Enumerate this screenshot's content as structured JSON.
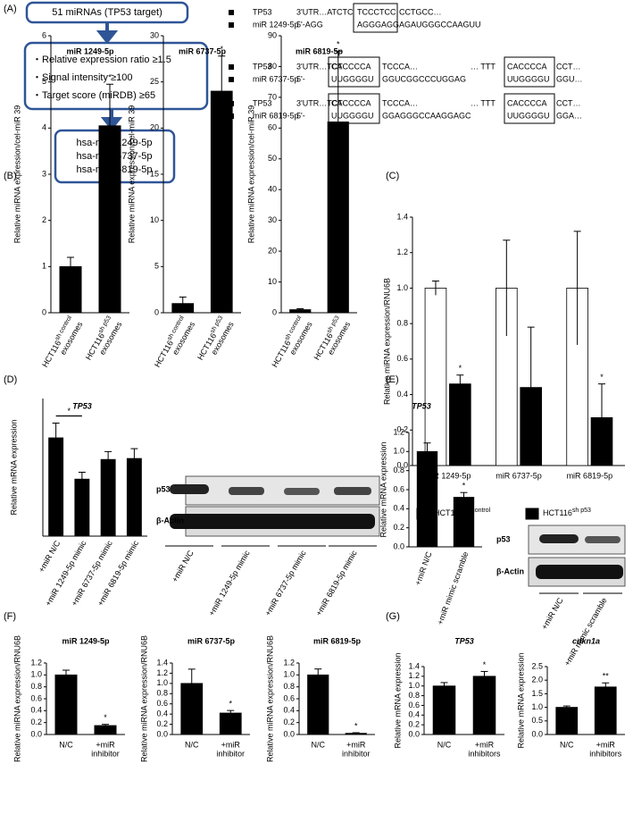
{
  "panel_labels": [
    "(A)",
    "(B)",
    "(C)",
    "(D)",
    "(E)",
    "(F)",
    "(G)"
  ],
  "flowchart": {
    "source": "51 miRNAs (TP53 target)",
    "criteria": [
      "Relative expression ratio ≥1.5",
      "Signal intensity ≥100",
      "Target score (miRDB) ≥65"
    ],
    "result": [
      "hsa-miR-1249-5p",
      "hsa-miR-6737-5p",
      "hsa-miR-6819-5p"
    ]
  },
  "alignments": [
    {
      "rows": [
        {
          "label": "TP53",
          "segments": [
            "3'UTR…ATCTC",
            "TCCCTCC",
            "CCTGCC…"
          ]
        },
        {
          "label": "miR 1249-5p",
          "segments": [
            "5'-AGG",
            "AGGGAGG",
            "AGAUGGGCCAAGUU"
          ]
        }
      ]
    },
    {
      "rows": [
        {
          "label": "TP53",
          "segments": [
            "3'UTR…TCT",
            "CACCCCA",
            "TCCCA…",
            "… TTT",
            "CACCCCA",
            "CCT…"
          ]
        },
        {
          "label": "miR 6737-5p",
          "segments": [
            "5'-",
            "UUGGGGU",
            "GGUCGGCCCUGGAG",
            "UUGGGGU",
            "GGU…"
          ]
        }
      ]
    },
    {
      "rows": [
        {
          "label": "TP53",
          "segments": [
            "3'UTR…TCT",
            "CACCCCA",
            "TCCCA…",
            "… TTT",
            "CACCCCA",
            "CCT…"
          ]
        },
        {
          "label": "miR 6819-5p",
          "segments": [
            "5'-",
            "UUGGGGU",
            "GGAGGGCCAAGGAGC",
            "UUGGGGU",
            "GGA…"
          ]
        }
      ]
    }
  ],
  "blots": [
    {
      "rows": [
        "p53",
        "β-Actin"
      ],
      "lanes": [
        "+miR N/C",
        "+miR 1249-5p mimic",
        "+miR 6737-5p mimic",
        "+miR 6819-5p mimic"
      ]
    },
    {
      "rows": [
        "p53",
        "β-Actin"
      ],
      "lanes": [
        "+miR N/C",
        "+miR mimic scramble"
      ]
    }
  ],
  "chart_data": [
    {
      "type": "bar",
      "title": "miR 1249-5p",
      "ylabel": "Relative miRNA expression/cel-miR 39",
      "categories": [
        [
          [
            "HCT116",
            "sh control"
          ],
          "exosomes"
        ],
        [
          [
            "HCT116",
            "sh p53"
          ],
          "exosomes"
        ]
      ],
      "values": [
        1.0,
        4.05
      ],
      "errors": [
        0.2,
        0.9
      ],
      "color": "#000000",
      "ylim": [
        0,
        6
      ],
      "yticks": [
        0,
        1,
        2,
        3,
        4,
        5,
        6
      ],
      "annotations": [
        {
          "at": 1,
          "text": "*"
        }
      ]
    },
    {
      "type": "bar",
      "title": "miR 6737-5p",
      "ylabel": "Relative miRNA expression/cel-miR 39",
      "categories": [
        [
          [
            "HCT116",
            "sh control"
          ],
          "exosomes"
        ],
        [
          [
            "HCT116",
            "sh p53"
          ],
          "exosomes"
        ]
      ],
      "values": [
        1.0,
        24
      ],
      "errors": [
        0.7,
        3.8
      ],
      "color": "#000000",
      "ylim": [
        0,
        30
      ],
      "yticks": [
        0,
        5,
        10,
        15,
        20,
        25,
        30
      ],
      "annotations": [
        {
          "at": 1,
          "text": "*"
        }
      ]
    },
    {
      "type": "bar",
      "title": "miR 6819-5p",
      "ylabel": "Relative miRNA expression/cel-miR 39",
      "categories": [
        [
          [
            "HCT116",
            "sh control"
          ],
          "exosomes"
        ],
        [
          [
            "HCT116",
            "sh p53"
          ],
          "exosomes"
        ]
      ],
      "values": [
        1.0,
        62
      ],
      "errors": [
        0.3,
        23
      ],
      "color": "#000000",
      "ylim": [
        0,
        90
      ],
      "yticks": [
        0,
        10,
        20,
        30,
        40,
        50,
        60,
        70,
        80,
        90
      ],
      "annotations": [
        {
          "at": 1,
          "text": "*"
        }
      ]
    },
    {
      "type": "bar",
      "ylabel": "Relative miRNA expression/RNU6B",
      "categories": [
        "miR 1249-5p",
        "miR 6737-5p",
        "miR 6819-5p"
      ],
      "series": [
        {
          "name": [
            "HCT116",
            "sh control"
          ],
          "color": "#ffffff",
          "values": [
            1.0,
            1.0,
            1.0
          ],
          "errors": [
            0.04,
            0.27,
            0.32
          ]
        },
        {
          "name": [
            "HCT116",
            "sh p53"
          ],
          "color": "#000000",
          "values": [
            0.46,
            0.44,
            0.27
          ],
          "errors": [
            0.05,
            0.34,
            0.19
          ]
        }
      ],
      "legend": "bottom",
      "ylim": [
        0,
        1.4
      ],
      "yticks": [
        {
          "value": 0,
          "label": "0.0"
        },
        0.2,
        0.4,
        0.6,
        0.8,
        {
          "value": 1,
          "label": "1.0"
        },
        1.2,
        1.4
      ],
      "annotations": [
        {
          "series": 1,
          "at": 0,
          "text": "*"
        },
        {
          "series": 1,
          "at": 2,
          "text": "*"
        }
      ]
    },
    {
      "type": "bar",
      "title": "TP53",
      "title_italic": true,
      "ylabel": "Relative mRNA expression",
      "categories": [
        "+miR N/C",
        "+miR 1249-5p mimic",
        "+miR 6737-5p mimic",
        "+miR 6819-5p mimic"
      ],
      "values": [
        1.0,
        0.58,
        0.78,
        0.79
      ],
      "errors": [
        0.15,
        0.07,
        0.08,
        0.1
      ],
      "color": "#000000",
      "ylim": [
        0,
        1.4
      ],
      "annotations": [
        {
          "between": [
            0,
            1
          ],
          "text": "*"
        }
      ]
    },
    {
      "type": "bar",
      "title": "TP53",
      "title_italic": true,
      "ylabel": "Relative mRNA expression",
      "categories": [
        "+miR N/C",
        "+miR mimic scramble"
      ],
      "values": [
        1.0,
        0.52
      ],
      "errors": [
        0.09,
        0.05
      ],
      "color": "#000000",
      "ylim": [
        0,
        1.2
      ],
      "yticks": [
        {
          "value": 0,
          "label": "0.0"
        },
        0.2,
        0.4,
        0.6,
        0.8,
        {
          "value": 1,
          "label": "1.0"
        },
        1.2
      ],
      "annotations": [
        {
          "at": 1,
          "text": "*"
        }
      ]
    },
    {
      "type": "bar",
      "title": "miR 1249-5p",
      "ylabel": "Relative miRNA expression/RNU6B",
      "categories": [
        "N/C",
        [
          "+miR",
          "inhibitor"
        ]
      ],
      "values": [
        1.0,
        0.15
      ],
      "errors": [
        0.08,
        0.02
      ],
      "color": "#000000",
      "ylim": [
        0,
        1.2
      ],
      "yticks": [
        {
          "value": 0,
          "label": "0.0"
        },
        0.2,
        0.4,
        0.6,
        0.8,
        {
          "value": 1,
          "label": "1.0"
        },
        1.2
      ],
      "annotations": [
        {
          "at": 1,
          "text": "*"
        }
      ]
    },
    {
      "type": "bar",
      "title": "miR 6737-5p",
      "ylabel": "Relative miRNA expression/RNU6B",
      "categories": [
        "N/C",
        [
          "+miR",
          "inhibitor"
        ]
      ],
      "values": [
        1.0,
        0.42
      ],
      "errors": [
        0.28,
        0.05
      ],
      "color": "#000000",
      "ylim": [
        0,
        1.4
      ],
      "yticks": [
        {
          "value": 0,
          "label": "0.0"
        },
        0.2,
        0.4,
        0.6,
        0.8,
        {
          "value": 1,
          "label": "1.0"
        },
        1.2,
        1.4
      ],
      "annotations": [
        {
          "at": 1,
          "text": "*"
        }
      ]
    },
    {
      "type": "bar",
      "title": "miR 6819-5p",
      "ylabel": "Relative miRNA expression/RNU6B",
      "categories": [
        "N/C",
        [
          "+miR",
          "inhibitor"
        ]
      ],
      "values": [
        1.0,
        0.02
      ],
      "errors": [
        0.1,
        0.01
      ],
      "color": "#000000",
      "ylim": [
        0,
        1.2
      ],
      "yticks": [
        {
          "value": 0,
          "label": "0.0"
        },
        0.2,
        0.4,
        0.6,
        0.8,
        {
          "value": 1,
          "label": "1.0"
        },
        1.2
      ],
      "annotations": [
        {
          "at": 1,
          "text": "*"
        }
      ]
    },
    {
      "type": "bar",
      "title": "TP53",
      "title_italic": true,
      "ylabel": "Relative mRNA expression",
      "categories": [
        "N/C",
        [
          "+miR",
          "inhibitors"
        ]
      ],
      "values": [
        1.0,
        1.2
      ],
      "errors": [
        0.07,
        0.1
      ],
      "color": "#000000",
      "ylim": [
        0,
        1.4
      ],
      "yticks": [
        {
          "value": 0,
          "label": "0.0"
        },
        0.2,
        0.4,
        0.6,
        0.8,
        {
          "value": 1,
          "label": "1.0"
        },
        1.2,
        1.4
      ],
      "annotations": [
        {
          "at": 1,
          "text": "*"
        }
      ]
    },
    {
      "type": "bar",
      "title": "cdkn1a",
      "title_italic": true,
      "ylabel": "Relative mRNA expression",
      "categories": [
        "N/C",
        [
          "+miR",
          "inhibitors"
        ]
      ],
      "values": [
        1.0,
        1.75
      ],
      "errors": [
        0.05,
        0.15
      ],
      "color": "#000000",
      "ylim": [
        0,
        2.5
      ],
      "yticks": [
        {
          "value": 0,
          "label": "0.0"
        },
        0.5,
        {
          "value": 1,
          "label": "1.0"
        },
        1.5,
        {
          "value": 2,
          "label": "2.0"
        },
        2.5
      ],
      "annotations": [
        {
          "at": 1,
          "text": "**"
        }
      ]
    }
  ]
}
